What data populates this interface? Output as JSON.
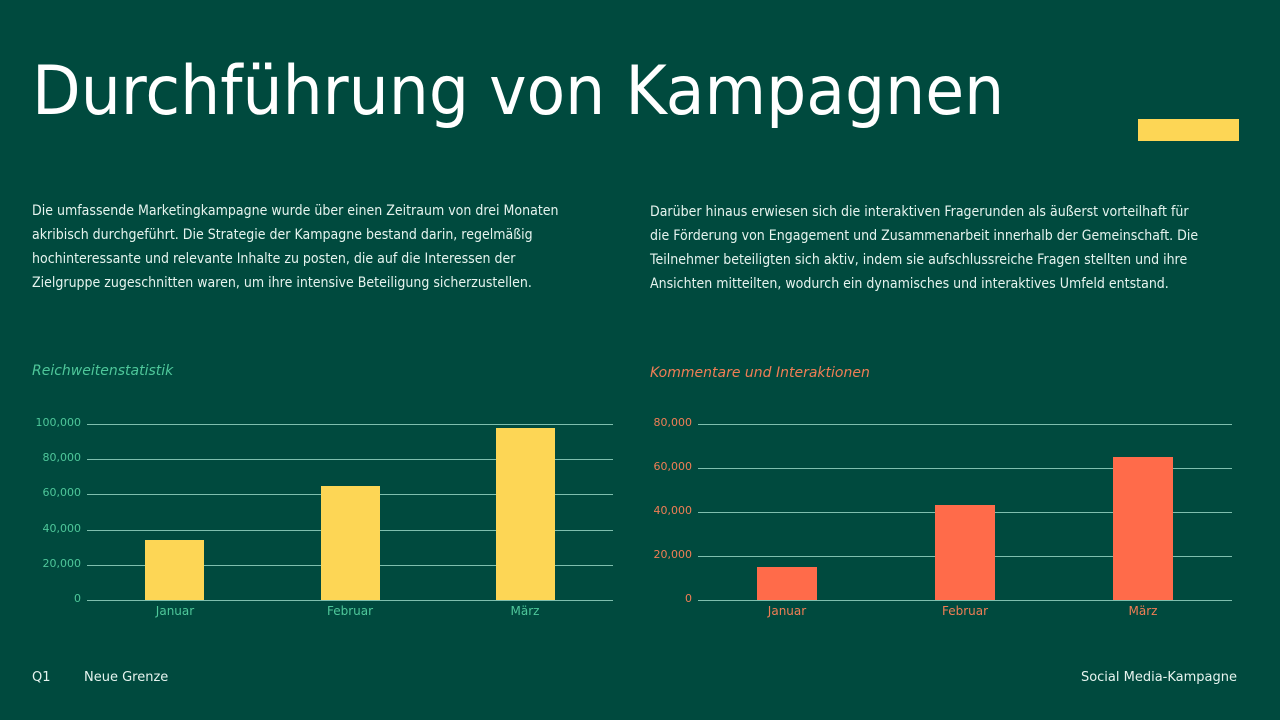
{
  "slide": {
    "title": "Durchführung von Kampagnen",
    "accent_color": "#fdd655",
    "background_color": "#004a3e"
  },
  "paragraphs": {
    "left": [
      "Die umfassende Marketingkampagne wurde über einen Zeitraum von drei Monaten",
      "akribisch durchgeführt. Die Strategie der Kampagne bestand darin, regelmäßig",
      "hochinteressante und relevante Inhalte zu posten, die auf die Interessen der",
      "Zielgruppe zugeschnitten waren, um ihre intensive Beteiligung sicherzustellen."
    ],
    "right": [
      "Darüber hinaus erwiesen sich die interaktiven Fragerunden als äußerst vorteilhaft für",
      "die Förderung von Engagement und Zusammenarbeit innerhalb der Gemeinschaft. Die",
      "Teilnehmer beteiligten sich aktiv, indem sie aufschlussreiche Fragen stellten und ihre",
      "Ansichten mitteilten, wodurch ein dynamisches und interaktives Umfeld entstand."
    ]
  },
  "footer": {
    "quarter": "Q1",
    "brand": "Neue Grenze",
    "topic": "Social Media-Kampagne"
  },
  "chart_data": [
    {
      "type": "bar",
      "title": "Reichweitenstatistik",
      "categories": [
        "Januar",
        "Februar",
        "März"
      ],
      "values": [
        34000,
        65000,
        98000
      ],
      "xlabel": "",
      "ylabel": "",
      "ylim": [
        0,
        100000
      ],
      "yticks": [
        "0",
        "20,000",
        "40,000",
        "60,000",
        "80,000",
        "100,000"
      ],
      "grid": true,
      "legend": "none",
      "bar_color": "#fdd655",
      "label_color": "#4ec79a"
    },
    {
      "type": "bar",
      "title": "Kommentare und Interaktionen",
      "categories": [
        "Januar",
        "Februar",
        "März"
      ],
      "values": [
        15000,
        43000,
        65000
      ],
      "xlabel": "",
      "ylabel": "",
      "ylim": [
        0,
        80000
      ],
      "yticks": [
        "0",
        "20,000",
        "40,000",
        "60,000",
        "80,000"
      ],
      "grid": true,
      "legend": "none",
      "bar_color": "#ff6b4a",
      "label_color": "#f07e55"
    }
  ]
}
